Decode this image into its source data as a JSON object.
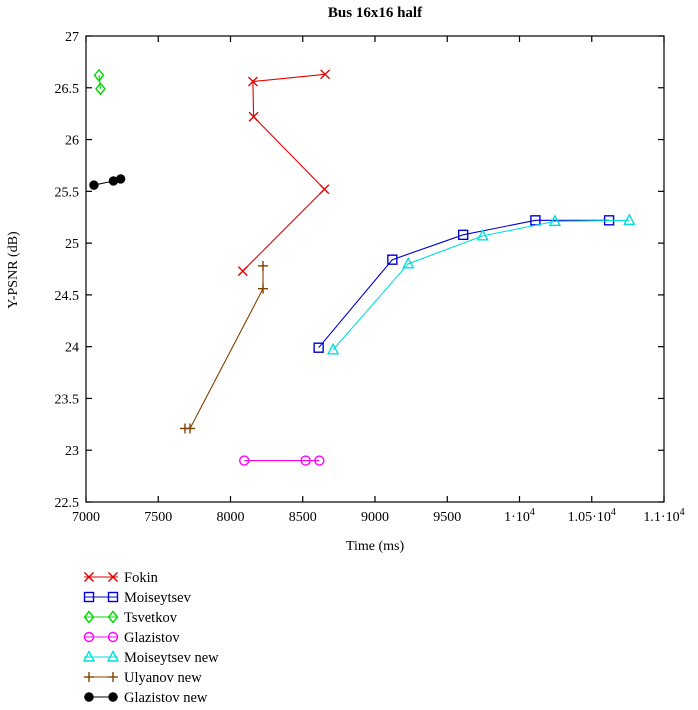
{
  "chart_data": {
    "type": "line",
    "title": "Bus 16x16 half",
    "xlabel": "Time (ms)",
    "ylabel": "Y-PSNR (dB)",
    "xlim": [
      7000,
      11000
    ],
    "ylim": [
      22.5,
      27
    ],
    "grid": false,
    "legend_position": "bottom-left",
    "xticks": [
      {
        "v": 7000,
        "label": "7000"
      },
      {
        "v": 7500,
        "label": "7500"
      },
      {
        "v": 8000,
        "label": "8000"
      },
      {
        "v": 8500,
        "label": "8500"
      },
      {
        "v": 9000,
        "label": "9000"
      },
      {
        "v": 9500,
        "label": "9500"
      },
      {
        "v": 10000,
        "label": "1·10^4"
      },
      {
        "v": 10500,
        "label": "1.05·10^4"
      },
      {
        "v": 11000,
        "label": "1.1·10^4"
      }
    ],
    "yticks": [
      {
        "v": 22.5,
        "label": "22.5"
      },
      {
        "v": 23,
        "label": "23"
      },
      {
        "v": 23.5,
        "label": "23.5"
      },
      {
        "v": 24,
        "label": "24"
      },
      {
        "v": 24.5,
        "label": "24.5"
      },
      {
        "v": 25,
        "label": "25"
      },
      {
        "v": 25.5,
        "label": "25.5"
      },
      {
        "v": 26,
        "label": "26"
      },
      {
        "v": 26.5,
        "label": "26.5"
      },
      {
        "v": 27,
        "label": "27"
      }
    ],
    "series": [
      {
        "name": "Fokin",
        "color": "#e60000",
        "marker": "x",
        "points": [
          [
            8085,
            24.73
          ],
          [
            8650,
            25.52
          ],
          [
            8160,
            26.22
          ],
          [
            8155,
            26.56
          ],
          [
            8655,
            26.63
          ]
        ]
      },
      {
        "name": "Moiseytsev",
        "color": "#0000d8",
        "marker": "square",
        "points": [
          [
            8610,
            23.99
          ],
          [
            9120,
            24.84
          ],
          [
            9610,
            25.08
          ],
          [
            10110,
            25.22
          ],
          [
            10620,
            25.22
          ]
        ]
      },
      {
        "name": "Tsvetkov",
        "color": "#00d800",
        "marker": "diamond",
        "points": [
          [
            7090,
            26.62
          ],
          [
            7100,
            26.49
          ]
        ]
      },
      {
        "name": "Glazistov",
        "color": "#ff00ff",
        "marker": "circle",
        "points": [
          [
            8095,
            22.9
          ],
          [
            8520,
            22.9
          ],
          [
            8615,
            22.9
          ]
        ]
      },
      {
        "name": "Moiseytsev new",
        "color": "#00dede",
        "marker": "triangle",
        "points": [
          [
            8710,
            23.97
          ],
          [
            9230,
            24.8
          ],
          [
            9745,
            25.07
          ],
          [
            10245,
            25.21
          ],
          [
            10760,
            25.22
          ]
        ]
      },
      {
        "name": "Ulyanov new",
        "color": "#804000",
        "marker": "plus",
        "points": [
          [
            7685,
            23.21
          ],
          [
            7720,
            23.21
          ],
          [
            8225,
            24.56
          ],
          [
            8225,
            24.78
          ]
        ]
      },
      {
        "name": "Glazistov new",
        "color": "#000000",
        "marker": "dot",
        "points": [
          [
            7055,
            25.56
          ],
          [
            7190,
            25.6
          ],
          [
            7240,
            25.62
          ]
        ]
      }
    ]
  }
}
